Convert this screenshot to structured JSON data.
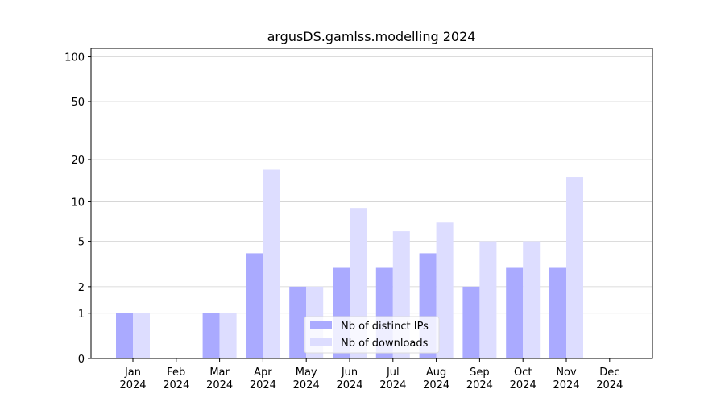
{
  "chart_data": {
    "type": "bar",
    "title": "argusDS.gamlss.modelling 2024",
    "categories": [
      "Jan 2024",
      "Feb 2024",
      "Mar 2024",
      "Apr 2024",
      "May 2024",
      "Jun 2024",
      "Jul 2024",
      "Aug 2024",
      "Sep 2024",
      "Oct 2024",
      "Nov 2024",
      "Dec 2024"
    ],
    "series": [
      {
        "name": "Nb of distinct IPs",
        "color": "#aaaaff",
        "values": [
          1,
          0,
          1,
          4,
          2,
          3,
          3,
          4,
          2,
          3,
          3,
          0
        ]
      },
      {
        "name": "Nb of downloads",
        "color": "#ddddff",
        "values": [
          1,
          0,
          1,
          17,
          2,
          9,
          6,
          7,
          5,
          5,
          15,
          0
        ]
      }
    ],
    "yscale": "log1p",
    "ylim": [
      0,
      114
    ],
    "yticks": [
      0,
      1,
      2,
      5,
      10,
      20,
      50,
      100
    ],
    "grid": true,
    "legend": "lower center"
  }
}
